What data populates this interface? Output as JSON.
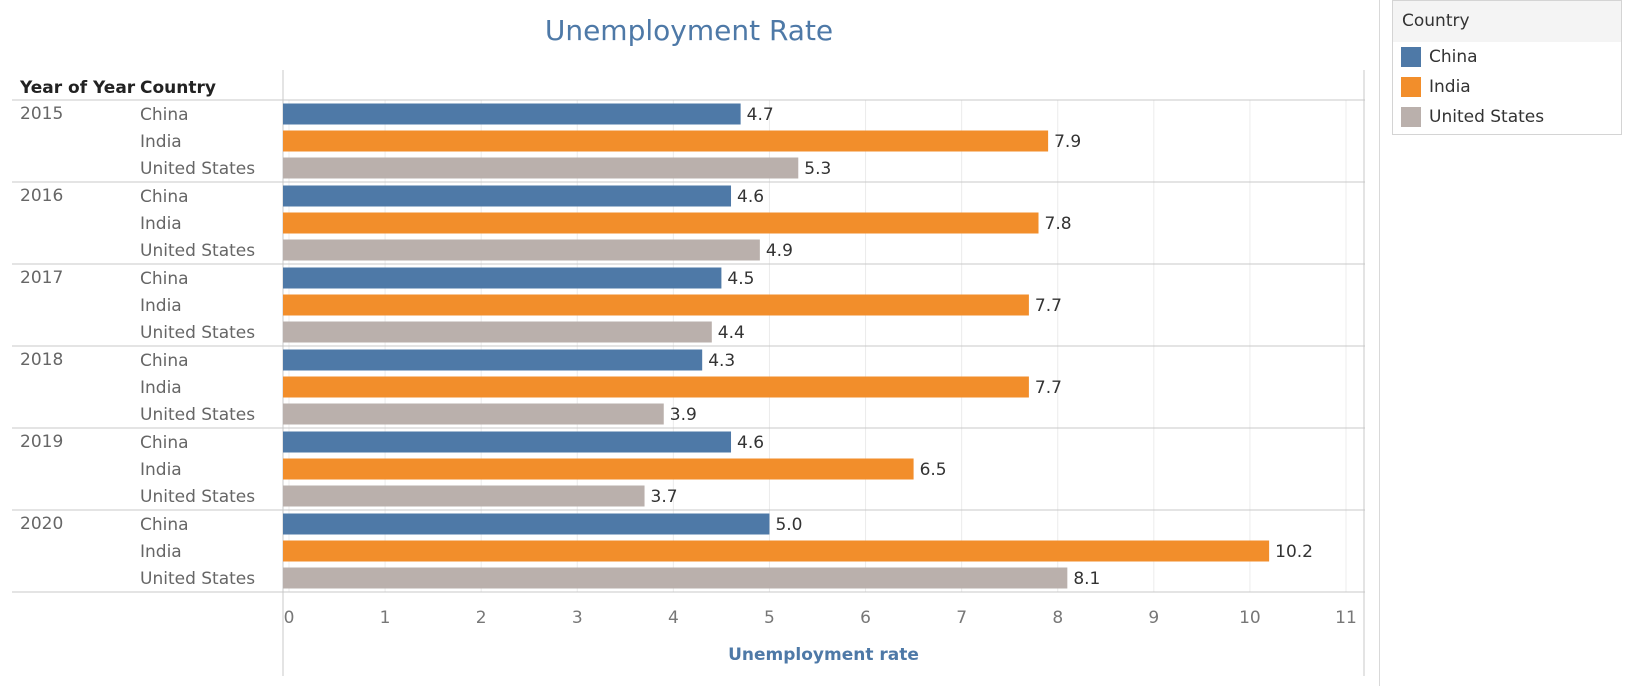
{
  "title": "Unemployment Rate",
  "header": {
    "year_col": "Year of Year",
    "country_col": "Country"
  },
  "legend": {
    "title": "Country",
    "items": [
      {
        "label": "China",
        "color": "#4e79a7"
      },
      {
        "label": "India",
        "color": "#f28e2b"
      },
      {
        "label": "United States",
        "color": "#bab0ac"
      }
    ]
  },
  "chart_data": {
    "type": "bar",
    "orientation": "horizontal",
    "title": "Unemployment Rate",
    "xlabel": "Unemployment rate",
    "xlim": [
      0,
      11
    ],
    "xticks": [
      0,
      1,
      2,
      3,
      4,
      5,
      6,
      7,
      8,
      9,
      10,
      11
    ],
    "grid": true,
    "legend_position": "right",
    "groups": [
      {
        "year": "2015",
        "bars": [
          {
            "country": "China",
            "value": 4.7,
            "label": "4.7"
          },
          {
            "country": "India",
            "value": 7.9,
            "label": "7.9"
          },
          {
            "country": "United States",
            "value": 5.3,
            "label": "5.3"
          }
        ]
      },
      {
        "year": "2016",
        "bars": [
          {
            "country": "China",
            "value": 4.6,
            "label": "4.6"
          },
          {
            "country": "India",
            "value": 7.8,
            "label": "7.8"
          },
          {
            "country": "United States",
            "value": 4.9,
            "label": "4.9"
          }
        ]
      },
      {
        "year": "2017",
        "bars": [
          {
            "country": "China",
            "value": 4.5,
            "label": "4.5"
          },
          {
            "country": "India",
            "value": 7.7,
            "label": "7.7"
          },
          {
            "country": "United States",
            "value": 4.4,
            "label": "4.4"
          }
        ]
      },
      {
        "year": "2018",
        "bars": [
          {
            "country": "China",
            "value": 4.3,
            "label": "4.3"
          },
          {
            "country": "India",
            "value": 7.7,
            "label": "7.7"
          },
          {
            "country": "United States",
            "value": 3.9,
            "label": "3.9"
          }
        ]
      },
      {
        "year": "2019",
        "bars": [
          {
            "country": "China",
            "value": 4.6,
            "label": "4.6"
          },
          {
            "country": "India",
            "value": 6.5,
            "label": "6.5"
          },
          {
            "country": "United States",
            "value": 3.7,
            "label": "3.7"
          }
        ]
      },
      {
        "year": "2020",
        "bars": [
          {
            "country": "China",
            "value": 5.0,
            "label": "5.0"
          },
          {
            "country": "India",
            "value": 10.2,
            "label": "10.2"
          },
          {
            "country": "United States",
            "value": 8.1,
            "label": "8.1"
          }
        ]
      }
    ]
  }
}
